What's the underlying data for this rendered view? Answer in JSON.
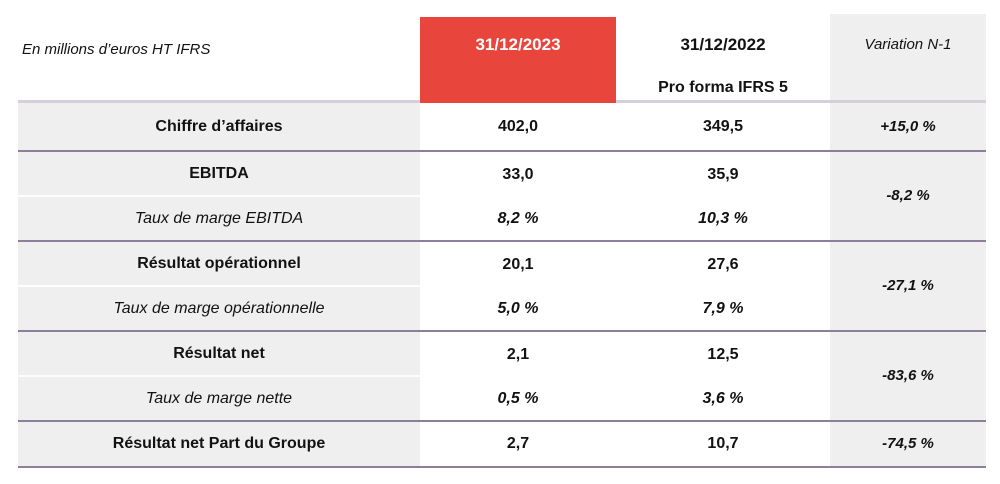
{
  "header": {
    "unit_label": "En millions d’euros HT IFRS",
    "col_2023": "31/12/2023",
    "col_2022_line1": "31/12/2022",
    "col_2022_line2": "Pro forma IFRS 5",
    "col_variation": "Variation N-1"
  },
  "rows": [
    {
      "label": "Chiffre d’affaires",
      "v2023": "402,0",
      "v2022": "349,5"
    },
    {
      "label": "EBITDA",
      "v2023": "33,0",
      "v2022": "35,9"
    },
    {
      "label": "Taux de marge EBITDA",
      "v2023": "8,2 %",
      "v2022": "10,3 %"
    },
    {
      "label": "Résultat opérationnel",
      "v2023": "20,1",
      "v2022": "27,6"
    },
    {
      "label": "Taux de marge opérationnelle",
      "v2023": "5,0 %",
      "v2022": "7,9 %"
    },
    {
      "label": "Résultat net",
      "v2023": "2,1",
      "v2022": "12,5"
    },
    {
      "label": "Taux de marge nette",
      "v2023": "0,5 %",
      "v2022": "3,6 %"
    },
    {
      "label": "Résultat net Part du Groupe",
      "v2023": "2,7",
      "v2022": "10,7"
    }
  ],
  "variations": [
    "+15,0 %",
    "-8,2 %",
    "-27,1 %",
    "-83,6 %",
    "-74,5 %"
  ],
  "colors": {
    "accent_red": "#E8463C",
    "row_bg": "#F0EFF0",
    "divider_strong": "#8D7F99",
    "divider_light": "#D5CFD9",
    "text_color": "#121212"
  }
}
